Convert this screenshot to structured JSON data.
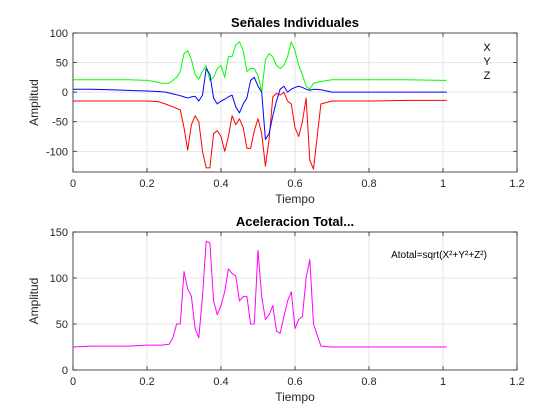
{
  "chart_data": [
    {
      "type": "line",
      "title": "Señales Individuales",
      "xlabel": "Tiempo",
      "ylabel": "Amplitud",
      "xlim": [
        0,
        1.2
      ],
      "ylim": [
        -135,
        100
      ],
      "xticks": [
        0,
        0.2,
        0.4,
        0.6,
        0.8,
        1,
        1.2
      ],
      "xtick_labels": [
        "0",
        "0.2",
        "0.4",
        "0.6",
        "0.8",
        "1",
        "1.2"
      ],
      "yticks": [
        -100,
        -50,
        0,
        50,
        100
      ],
      "ytick_labels": [
        "-100",
        "-50",
        "0",
        "50",
        "100"
      ],
      "grid": true,
      "legend": {
        "position": "top-right",
        "entries": [
          "X",
          "Y",
          "Z"
        ]
      },
      "series": [
        {
          "name": "X",
          "color": "#ff0000",
          "x": [
            0,
            0.05,
            0.1,
            0.15,
            0.2,
            0.23,
            0.25,
            0.27,
            0.29,
            0.3,
            0.31,
            0.32,
            0.33,
            0.34,
            0.35,
            0.36,
            0.37,
            0.38,
            0.39,
            0.4,
            0.41,
            0.42,
            0.43,
            0.44,
            0.45,
            0.46,
            0.47,
            0.48,
            0.49,
            0.5,
            0.51,
            0.52,
            0.53,
            0.54,
            0.55,
            0.56,
            0.57,
            0.58,
            0.59,
            0.6,
            0.61,
            0.62,
            0.63,
            0.64,
            0.65,
            0.67,
            0.7,
            0.8,
            0.9,
            1.0,
            1.01
          ],
          "y": [
            -15,
            -15,
            -15,
            -15,
            -15,
            -16,
            -20,
            -25,
            -30,
            -60,
            -98,
            -55,
            -40,
            -50,
            -100,
            -128,
            -128,
            -70,
            -65,
            -75,
            -100,
            -75,
            -40,
            -55,
            -45,
            -60,
            -95,
            -95,
            -65,
            -45,
            -70,
            -125,
            -80,
            -8,
            -2,
            -5,
            0,
            -15,
            -20,
            -60,
            -75,
            -50,
            -10,
            -115,
            -130,
            -20,
            -15,
            -15,
            -14,
            -14,
            -14
          ]
        },
        {
          "name": "Y",
          "color": "#00ff00",
          "x": [
            0,
            0.05,
            0.1,
            0.15,
            0.2,
            0.22,
            0.24,
            0.26,
            0.28,
            0.29,
            0.3,
            0.31,
            0.32,
            0.33,
            0.34,
            0.35,
            0.36,
            0.37,
            0.38,
            0.39,
            0.4,
            0.41,
            0.42,
            0.43,
            0.44,
            0.45,
            0.46,
            0.47,
            0.48,
            0.49,
            0.5,
            0.51,
            0.52,
            0.53,
            0.54,
            0.55,
            0.56,
            0.57,
            0.58,
            0.59,
            0.6,
            0.61,
            0.62,
            0.63,
            0.64,
            0.65,
            0.67,
            0.7,
            0.8,
            0.9,
            1.0,
            1.01
          ],
          "y": [
            21,
            21,
            21,
            21,
            20,
            18,
            15,
            15,
            25,
            35,
            65,
            70,
            55,
            30,
            22,
            35,
            45,
            20,
            25,
            40,
            45,
            25,
            60,
            60,
            80,
            85,
            70,
            35,
            40,
            40,
            28,
            0,
            55,
            65,
            60,
            45,
            40,
            45,
            60,
            85,
            70,
            45,
            30,
            10,
            5,
            15,
            18,
            21,
            21,
            21,
            20,
            20
          ]
        },
        {
          "name": "Z",
          "color": "#0000ff",
          "x": [
            0,
            0.05,
            0.1,
            0.15,
            0.2,
            0.23,
            0.25,
            0.27,
            0.29,
            0.3,
            0.31,
            0.32,
            0.33,
            0.34,
            0.35,
            0.36,
            0.37,
            0.38,
            0.39,
            0.4,
            0.41,
            0.42,
            0.43,
            0.44,
            0.45,
            0.46,
            0.47,
            0.48,
            0.49,
            0.5,
            0.51,
            0.52,
            0.53,
            0.54,
            0.55,
            0.56,
            0.57,
            0.58,
            0.59,
            0.6,
            0.61,
            0.62,
            0.63,
            0.64,
            0.65,
            0.67,
            0.7,
            0.8,
            0.9,
            1.0,
            1.01
          ],
          "y": [
            5,
            5,
            4,
            3,
            2,
            1,
            0,
            -3,
            -6,
            -8,
            -10,
            -8,
            -7,
            -15,
            -5,
            40,
            30,
            -10,
            -20,
            -15,
            -12,
            -8,
            -5,
            -25,
            -35,
            -20,
            -10,
            20,
            25,
            10,
            0,
            -80,
            -70,
            -40,
            -15,
            5,
            10,
            0,
            5,
            8,
            10,
            8,
            5,
            3,
            5,
            4,
            0,
            0,
            0,
            0,
            0
          ]
        }
      ]
    },
    {
      "type": "line",
      "title": "Aceleracion Total...",
      "xlabel": "Tiempo",
      "ylabel": "Amplitud",
      "xlim": [
        0,
        1.2
      ],
      "ylim": [
        0,
        150
      ],
      "xticks": [
        0,
        0.2,
        0.4,
        0.6,
        0.8,
        1,
        1.2
      ],
      "xtick_labels": [
        "0",
        "0.2",
        "0.4",
        "0.6",
        "0.8",
        "1",
        "1.2"
      ],
      "yticks": [
        0,
        50,
        100,
        150
      ],
      "ytick_labels": [
        "0",
        "50",
        "100",
        "150"
      ],
      "grid": true,
      "annotation": "Atotal=sqrt(X²+Y²+Z²)",
      "series": [
        {
          "name": "Atotal",
          "color": "#ff00ff",
          "x": [
            0,
            0.05,
            0.1,
            0.15,
            0.2,
            0.24,
            0.26,
            0.27,
            0.28,
            0.29,
            0.3,
            0.31,
            0.32,
            0.33,
            0.34,
            0.35,
            0.36,
            0.37,
            0.38,
            0.39,
            0.4,
            0.41,
            0.42,
            0.43,
            0.44,
            0.45,
            0.46,
            0.47,
            0.48,
            0.49,
            0.5,
            0.51,
            0.52,
            0.53,
            0.54,
            0.55,
            0.56,
            0.57,
            0.58,
            0.59,
            0.6,
            0.61,
            0.62,
            0.63,
            0.64,
            0.65,
            0.67,
            0.7,
            0.8,
            0.9,
            1.0,
            1.01
          ],
          "y": [
            25,
            26,
            26,
            26,
            27,
            27,
            28,
            35,
            50,
            50,
            107,
            88,
            80,
            45,
            35,
            80,
            140,
            138,
            75,
            60,
            70,
            85,
            110,
            105,
            102,
            75,
            80,
            80,
            50,
            50,
            130,
            80,
            55,
            60,
            70,
            42,
            40,
            58,
            75,
            85,
            45,
            55,
            58,
            100,
            120,
            50,
            26,
            25,
            25,
            25,
            25,
            25
          ]
        }
      ]
    }
  ]
}
